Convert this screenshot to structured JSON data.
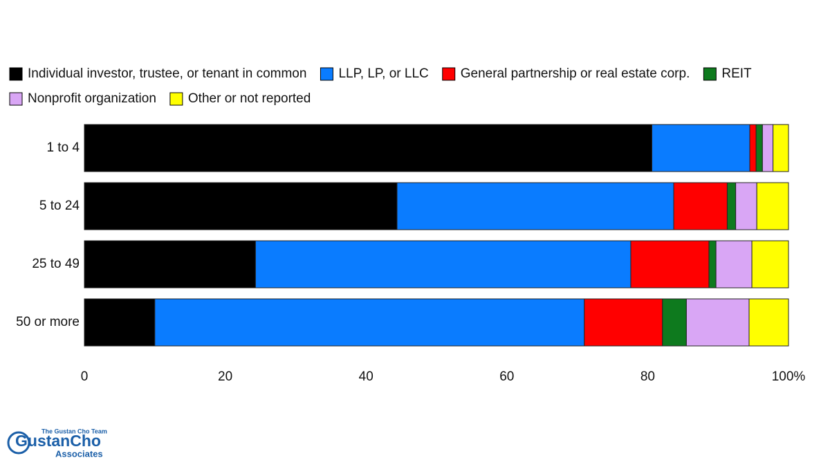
{
  "chart_data": {
    "type": "stacked-bar-horizontal",
    "categories": [
      "1 to 4",
      "5 to 24",
      "25 to 49",
      "50 or more"
    ],
    "series": [
      {
        "name": "Individual investor, trustee, or tenant in common",
        "color": "#000000",
        "values": [
          80.6,
          44.4,
          24.3,
          10.0
        ]
      },
      {
        "name": "LLP, LP, or LLC",
        "color": "#0a7cff",
        "values": [
          13.9,
          39.3,
          53.3,
          61.0
        ]
      },
      {
        "name": "General partnership or real estate corp.",
        "color": "#ff0000",
        "values": [
          0.9,
          7.6,
          11.1,
          11.1
        ]
      },
      {
        "name": "REIT",
        "color": "#0e7a1e",
        "values": [
          0.9,
          1.2,
          1.0,
          3.4
        ]
      },
      {
        "name": "Nonprofit organization",
        "color": "#d9a6f5",
        "values": [
          1.5,
          3.0,
          5.1,
          8.9
        ]
      },
      {
        "name": "Other or not reported",
        "color": "#ffff00",
        "values": [
          2.2,
          4.5,
          5.2,
          5.6
        ]
      }
    ],
    "xlim": [
      0,
      100
    ],
    "xticks": [
      0,
      20,
      40,
      60,
      80,
      {
        "value": 100,
        "label": "100%"
      }
    ]
  },
  "logo": {
    "tagline": "The Gustan Cho Team",
    "name": "GustanCho",
    "subtitle": "Associates"
  }
}
